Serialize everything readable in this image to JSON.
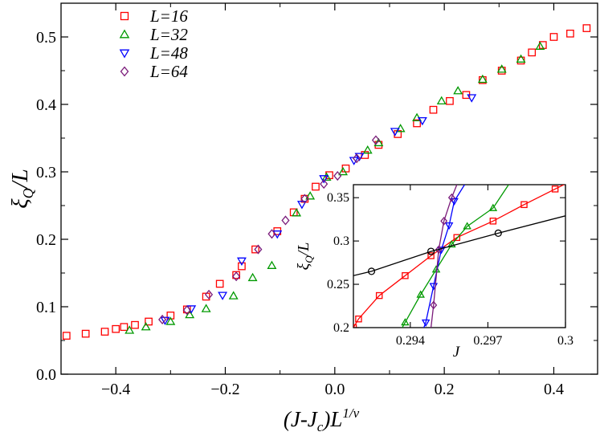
{
  "chart_data": [
    {
      "type": "scatter",
      "name": "main-collapse",
      "xlabel_html": [
        "(J-J",
        "c",
        ")L",
        "1/ν"
      ],
      "ylabel_parts": [
        "ξ",
        "Q",
        "/L"
      ],
      "xlim": [
        -0.5,
        0.48
      ],
      "ylim": [
        0.0,
        0.55
      ],
      "xticks": [
        -0.4,
        -0.2,
        0.0,
        0.2,
        0.4
      ],
      "xtick_labels": [
        "−0.4",
        "−0.2",
        "0.0",
        "0.2",
        "0.4"
      ],
      "yticks": [
        0.0,
        0.1,
        0.2,
        0.3,
        0.4,
        0.5
      ],
      "ytick_labels": [
        "0.0",
        "0.1",
        "0.2",
        "0.3",
        "0.4",
        "0.5"
      ],
      "legend_position": "top-left",
      "series": [
        {
          "name": "L=16",
          "color": "#ff0000",
          "marker": "square",
          "x": [
            -0.49,
            -0.455,
            -0.42,
            -0.4,
            -0.385,
            -0.365,
            -0.34,
            -0.3,
            -0.27,
            -0.235,
            -0.21,
            -0.18,
            -0.17,
            -0.145,
            -0.105,
            -0.075,
            -0.055,
            -0.035,
            -0.01,
            0.02,
            0.055,
            0.08,
            0.115,
            0.15,
            0.18,
            0.21,
            0.24,
            0.27,
            0.305,
            0.34,
            0.36,
            0.38,
            0.4,
            0.43,
            0.46
          ],
          "y": [
            0.057,
            0.06,
            0.063,
            0.067,
            0.07,
            0.073,
            0.078,
            0.087,
            0.096,
            0.115,
            0.134,
            0.147,
            0.16,
            0.185,
            0.212,
            0.24,
            0.26,
            0.278,
            0.295,
            0.305,
            0.325,
            0.34,
            0.356,
            0.372,
            0.392,
            0.405,
            0.414,
            0.436,
            0.45,
            0.465,
            0.477,
            0.488,
            0.5,
            0.505,
            0.513
          ]
        },
        {
          "name": "L=32",
          "color": "#009900",
          "marker": "triangle-up",
          "x": [
            -0.375,
            -0.345,
            -0.3,
            -0.265,
            -0.235,
            -0.185,
            -0.15,
            -0.115,
            -0.07,
            -0.045,
            -0.015,
            0.015,
            0.06,
            0.08,
            0.12,
            0.15,
            0.195,
            0.225,
            0.27,
            0.305,
            0.34,
            0.375
          ],
          "y": [
            0.065,
            0.07,
            0.078,
            0.088,
            0.097,
            0.116,
            0.143,
            0.161,
            0.239,
            0.264,
            0.292,
            0.3,
            0.332,
            0.343,
            0.364,
            0.38,
            0.405,
            0.42,
            0.437,
            0.452,
            0.467,
            0.486
          ]
        },
        {
          "name": "L=48",
          "color": "#0000ff",
          "marker": "triangle-down",
          "x": [
            -0.31,
            -0.262,
            -0.205,
            -0.17,
            -0.105,
            -0.06,
            -0.02,
            0.035,
            0.045,
            0.11,
            0.16,
            0.25
          ],
          "y": [
            0.08,
            0.097,
            0.117,
            0.168,
            0.208,
            0.252,
            0.29,
            0.317,
            0.323,
            0.36,
            0.376,
            0.41
          ]
        },
        {
          "name": "L=64",
          "color": "#7a1a7a",
          "marker": "diamond",
          "x": [
            -0.315,
            -0.27,
            -0.23,
            -0.18,
            -0.14,
            -0.115,
            -0.09,
            -0.055,
            -0.02,
            0.005,
            0.04,
            0.075
          ],
          "y": [
            0.081,
            0.095,
            0.118,
            0.145,
            0.185,
            0.208,
            0.228,
            0.26,
            0.282,
            0.294,
            0.32,
            0.347
          ]
        }
      ]
    },
    {
      "type": "line",
      "name": "inset-crossing",
      "xlabel": "J",
      "ylabel_parts": [
        "ξ",
        "Q",
        "/L"
      ],
      "xlim": [
        0.2918,
        0.3
      ],
      "ylim": [
        0.2,
        0.365
      ],
      "xticks": [
        0.294,
        0.297,
        0.3
      ],
      "xtick_labels": [
        "0.294",
        "0.297",
        "0.3"
      ],
      "yticks": [
        0.2,
        0.25,
        0.3,
        0.35
      ],
      "ytick_labels": [
        "0.2",
        "0.25",
        "0.3",
        "0.35"
      ],
      "series": [
        {
          "name": "L=16",
          "color": "#ff0000",
          "marker": "square",
          "x": [
            0.2918,
            0.292,
            0.2928,
            0.2938,
            0.2948,
            0.2958,
            0.2972,
            0.2984,
            0.2996,
            0.3
          ],
          "y": [
            0.2,
            0.21,
            0.237,
            0.26,
            0.283,
            0.304,
            0.323,
            0.342,
            0.36,
            0.366
          ],
          "markers": [
            true,
            true,
            true,
            true,
            true,
            true,
            true,
            true,
            true,
            false
          ]
        },
        {
          "name": "L=32",
          "color": "#009900",
          "marker": "triangle-up",
          "x": [
            0.2935,
            0.2938,
            0.2944,
            0.295,
            0.2956,
            0.2962,
            0.2972,
            0.2978
          ],
          "y": [
            0.19,
            0.206,
            0.238,
            0.267,
            0.296,
            0.317,
            0.338,
            0.365
          ],
          "markers": [
            false,
            true,
            true,
            true,
            true,
            true,
            true,
            false
          ]
        },
        {
          "name": "L=48",
          "color": "#0000ff",
          "marker": "triangle-down",
          "x": [
            0.2944,
            0.2946,
            0.2949,
            0.2952,
            0.2955,
            0.2957,
            0.2961
          ],
          "y": [
            0.19,
            0.206,
            0.248,
            0.29,
            0.318,
            0.346,
            0.365
          ],
          "markers": [
            false,
            true,
            true,
            true,
            true,
            true,
            false
          ]
        },
        {
          "name": "L=64",
          "color": "#7a1a7a",
          "marker": "diamond",
          "x": [
            0.2947,
            0.2948,
            0.2949,
            0.2951,
            0.2953,
            0.2956,
            0.2958
          ],
          "y": [
            0.19,
            0.2,
            0.226,
            0.29,
            0.323,
            0.35,
            0.365
          ],
          "markers": [
            false,
            false,
            true,
            true,
            true,
            true,
            false
          ]
        },
        {
          "name": "crossing",
          "color": "#000000",
          "marker": "circle",
          "x": [
            0.2918,
            0.2925,
            0.2948,
            0.2974,
            0.3
          ],
          "y": [
            0.26,
            0.265,
            0.288,
            0.309,
            0.329
          ],
          "markers": [
            false,
            true,
            true,
            true,
            false
          ]
        }
      ]
    }
  ]
}
